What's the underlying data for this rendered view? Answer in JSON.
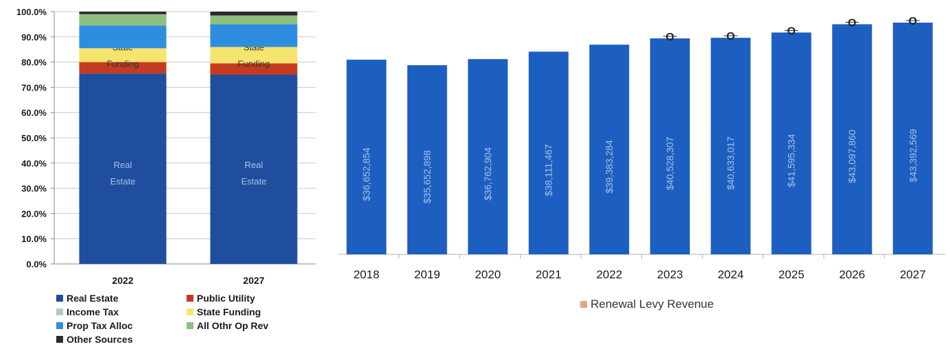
{
  "chart_data": [
    {
      "type": "bar",
      "stacked": true,
      "categories": [
        "2022",
        "2027"
      ],
      "ylim": [
        0,
        100
      ],
      "yticks": [
        "0.0%",
        "10.0%",
        "20.0%",
        "30.0%",
        "40.0%",
        "50.0%",
        "60.0%",
        "70.0%",
        "80.0%",
        "90.0%",
        "100.0%"
      ],
      "grid": true,
      "legend_position": "bottom",
      "series": [
        {
          "name": "Real Estate",
          "color": "#1f4e9e",
          "values": [
            75.5,
            75.0
          ],
          "labels": [
            "Real Estate",
            "Real Estate"
          ]
        },
        {
          "name": "Public Utility",
          "color": "#c63b1f",
          "values": [
            4.5,
            4.5
          ]
        },
        {
          "name": "Income Tax",
          "color": "#b9c7c8",
          "values": [
            0,
            0
          ]
        },
        {
          "name": "State Funding",
          "color": "#f5e46d",
          "values": [
            5.5,
            6.5
          ],
          "labels": [
            "State Funding",
            "State Funding"
          ]
        },
        {
          "name": "Prop Tax Alloc",
          "color": "#2d8ee0",
          "values": [
            9.0,
            9.0
          ]
        },
        {
          "name": "All Othr Op Rev",
          "color": "#8fbf7e",
          "values": [
            4.5,
            3.5
          ]
        },
        {
          "name": "Other Sources",
          "color": "#2b2b2b",
          "values": [
            1.0,
            1.5
          ]
        }
      ]
    },
    {
      "type": "bar",
      "categories": [
        "2018",
        "2019",
        "2020",
        "2021",
        "2022",
        "2023",
        "2024",
        "2025",
        "2026",
        "2027"
      ],
      "values": [
        36652854,
        35652898,
        36762904,
        38111467,
        39383284,
        40528307,
        40633017,
        41595334,
        43097860,
        43392569
      ],
      "value_labels": [
        "$36,652,854",
        "$35,652,898",
        "$36,762,904",
        "$38,111,467",
        "$39,383,284",
        "$40,528,307",
        "$40,633,017",
        "$41,595,334",
        "$43,097,860",
        "$43,392,569"
      ],
      "bar_color": "#1d5fc0",
      "marker_symbol": "O",
      "marker_years": [
        "2023",
        "2024",
        "2025",
        "2026",
        "2027"
      ],
      "legend": [
        {
          "name": "Renewal Levy Revenue",
          "color": "#e8a08c"
        }
      ],
      "legend_position": "bottom"
    }
  ]
}
